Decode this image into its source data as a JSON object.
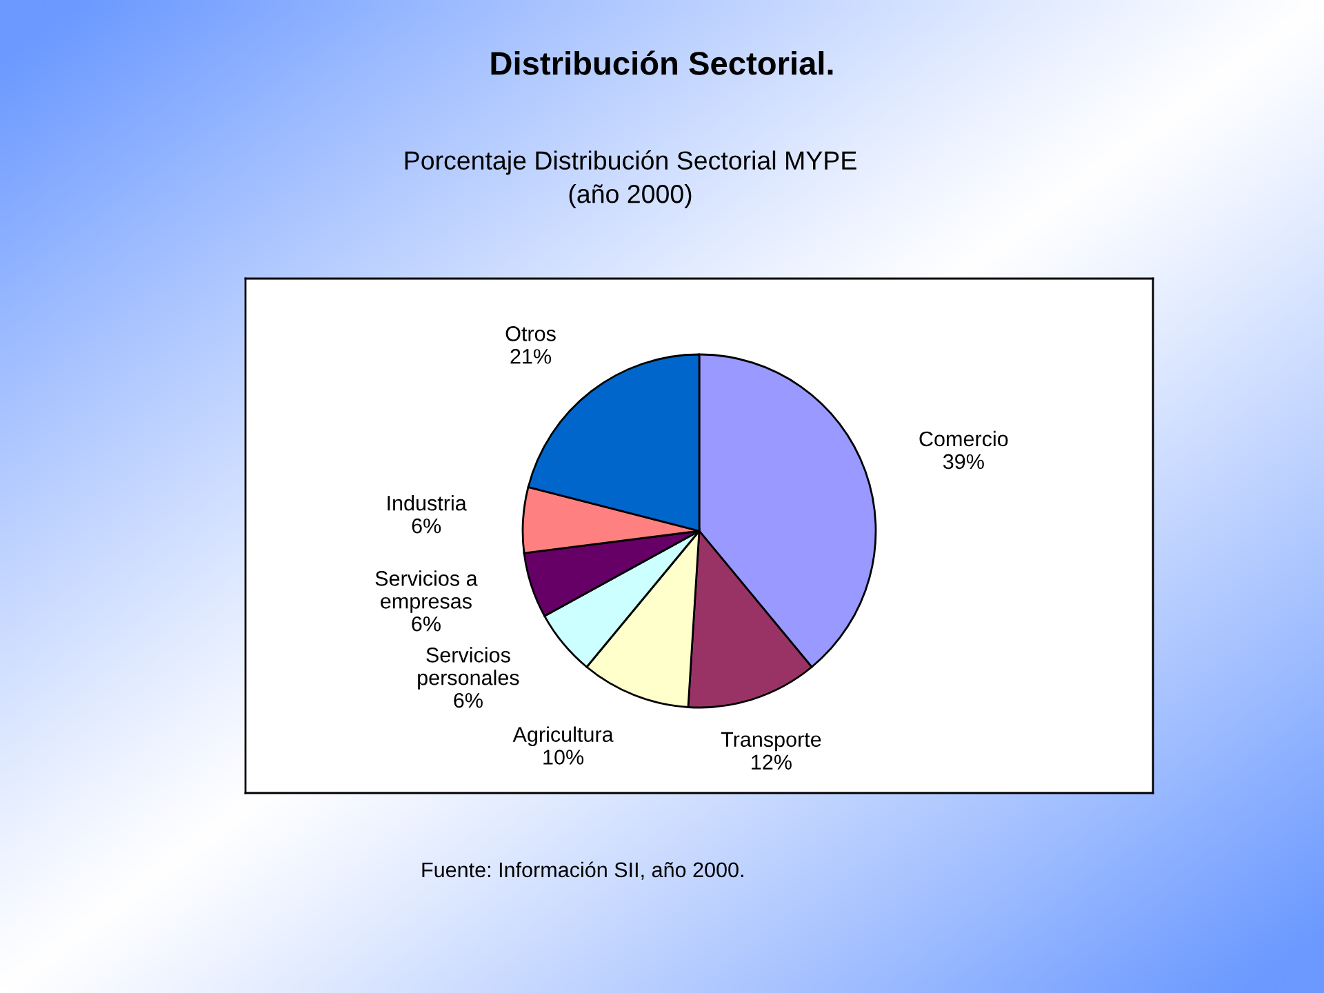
{
  "chart_data": {
    "type": "pie",
    "title": "Distribución Sectorial.",
    "subtitle": "Porcentaje Distribución Sectorial MYPE\n(año 2000)",
    "categories": [
      "Comercio",
      "Transporte",
      "Agricultura",
      "Servicios\npersonales",
      "Servicios a\nempresas",
      "Industria",
      "Otros"
    ],
    "values": [
      39,
      12,
      10,
      6,
      6,
      6,
      21
    ],
    "value_labels": [
      "39%",
      "12%",
      "10%",
      "6%",
      "6%",
      "6%",
      "21%"
    ],
    "colors": [
      "#9999ff",
      "#993366",
      "#ffffcc",
      "#ccffff",
      "#660066",
      "#ff8080",
      "#0066cc"
    ],
    "annotations": [
      "Fuente: Información SII, año 2000."
    ]
  }
}
